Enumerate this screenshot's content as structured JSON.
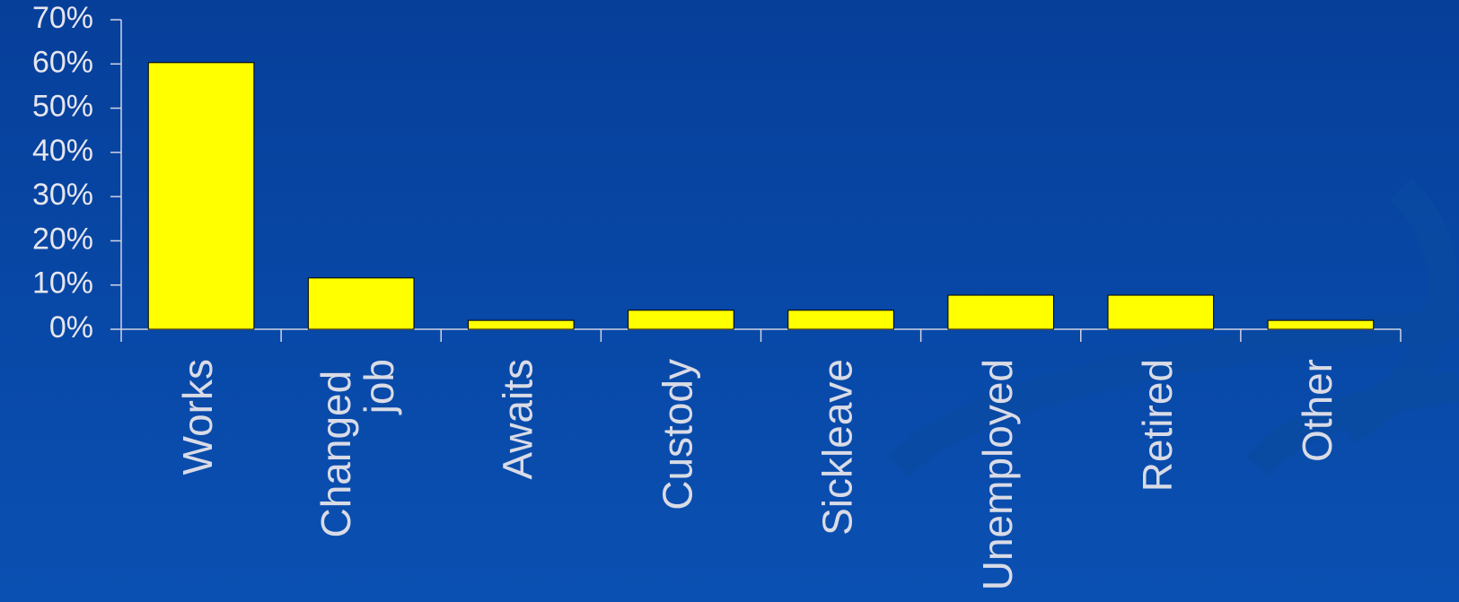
{
  "chart_data": {
    "type": "bar",
    "categories": [
      "Works",
      "Changed job",
      "Awaits",
      "Custody",
      "Sickleave",
      "Unemployed",
      "Retired",
      "Other"
    ],
    "values": [
      60.3,
      11.6,
      2,
      4.3,
      4.3,
      7.7,
      7.7,
      2
    ],
    "color": "#ffff00",
    "ylim": [
      0,
      70
    ],
    "yticks": [
      {
        "value": 0,
        "label": "0%"
      },
      {
        "value": 10,
        "label": "10%"
      },
      {
        "value": 20,
        "label": "20%"
      },
      {
        "value": 30,
        "label": "30%"
      },
      {
        "value": 40,
        "label": "40%"
      },
      {
        "value": 50,
        "label": "50%"
      },
      {
        "value": 60,
        "label": "60%"
      },
      {
        "value": 70,
        "label": "70%"
      }
    ],
    "grid": false
  }
}
